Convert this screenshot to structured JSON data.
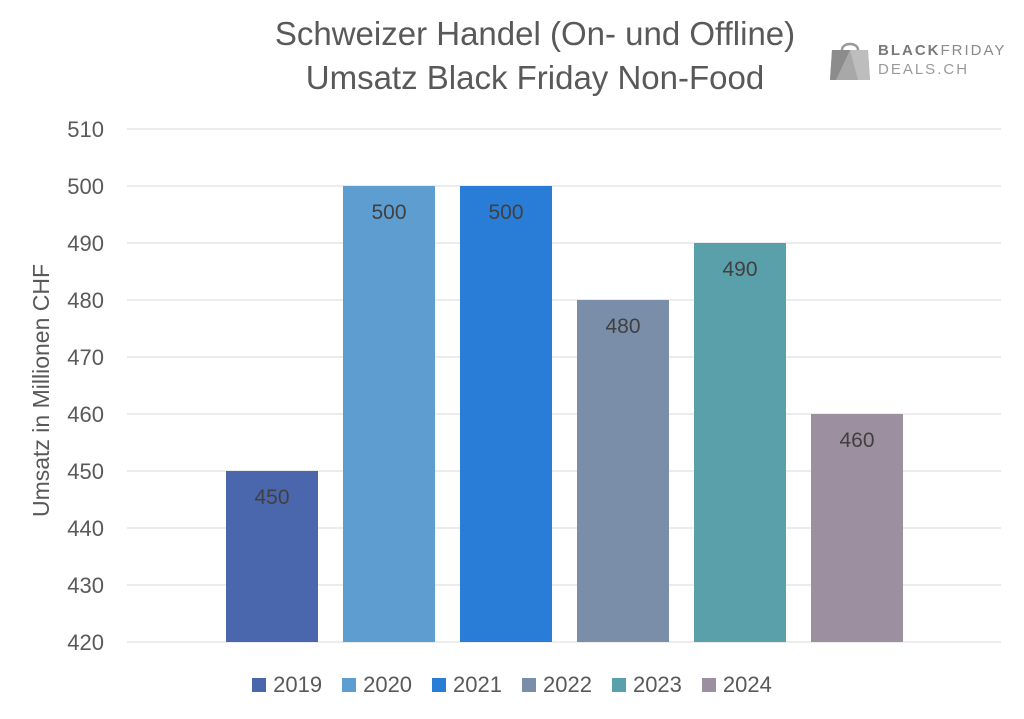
{
  "title_line1": "Schweizer Handel (On- und Offline)",
  "title_line2": "Umsatz Black Friday Non-Food",
  "logo": {
    "line1_bold": "BLACK",
    "line1_rest": "FRIDAY",
    "line2": "DEALS.CH"
  },
  "chart_data": {
    "type": "bar",
    "title": "Schweizer Handel (On- und Offline) Umsatz Black Friday Non-Food",
    "xlabel": "",
    "ylabel": "Umsatz in Millionen CHF",
    "ylim": [
      420,
      510
    ],
    "yticks": [
      420,
      430,
      440,
      450,
      460,
      470,
      480,
      490,
      500,
      510
    ],
    "grid": true,
    "legend_position": "bottom",
    "categories": [
      "2019",
      "2020",
      "2021",
      "2022",
      "2023",
      "2024"
    ],
    "values": [
      450,
      500,
      500,
      480,
      490,
      460
    ],
    "colors": [
      "#4a66ad",
      "#5e9dd0",
      "#2a7dd6",
      "#7b8ea9",
      "#5aa0ab",
      "#9c8f9f"
    ]
  }
}
